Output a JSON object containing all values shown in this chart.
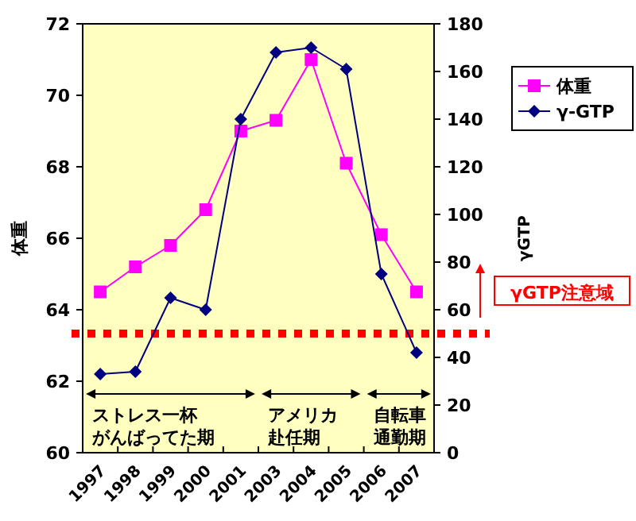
{
  "chart_data": {
    "type": "line",
    "categories": [
      "1997",
      "1998",
      "1999",
      "2000",
      "2001",
      "2003",
      "2004",
      "2005",
      "2006",
      "2007"
    ],
    "series": [
      {
        "name": "体重",
        "color": "#ff00ff",
        "marker": "square",
        "values": [
          64.5,
          65.2,
          65.8,
          66.8,
          69.0,
          69.3,
          71.0,
          68.1,
          66.1,
          64.5
        ]
      },
      {
        "name": "γ-GTP",
        "color": "#000080",
        "marker": "diamond",
        "axis": "y2",
        "values": [
          33,
          34,
          65,
          60,
          140,
          168,
          170,
          161,
          75,
          42
        ]
      }
    ],
    "ylabel": "体重",
    "y2label": "γGTP",
    "ylim": [
      60,
      72
    ],
    "yticks": [
      60,
      62,
      64,
      66,
      68,
      70,
      72
    ],
    "y2lim": [
      0,
      180
    ],
    "y2ticks": [
      0,
      20,
      40,
      60,
      80,
      100,
      120,
      140,
      160,
      180
    ],
    "ref_lines": [
      {
        "axis": "y2",
        "value": 50,
        "label": "γGTP注意域",
        "color": "#ff0000",
        "line_style": "dotted"
      }
    ],
    "annotations": [
      "ストレス一杯",
      "がんばってた期",
      "アメリカ",
      "赴任期",
      "自転車",
      "通勤期"
    ],
    "legend": "right",
    "grid": false
  }
}
